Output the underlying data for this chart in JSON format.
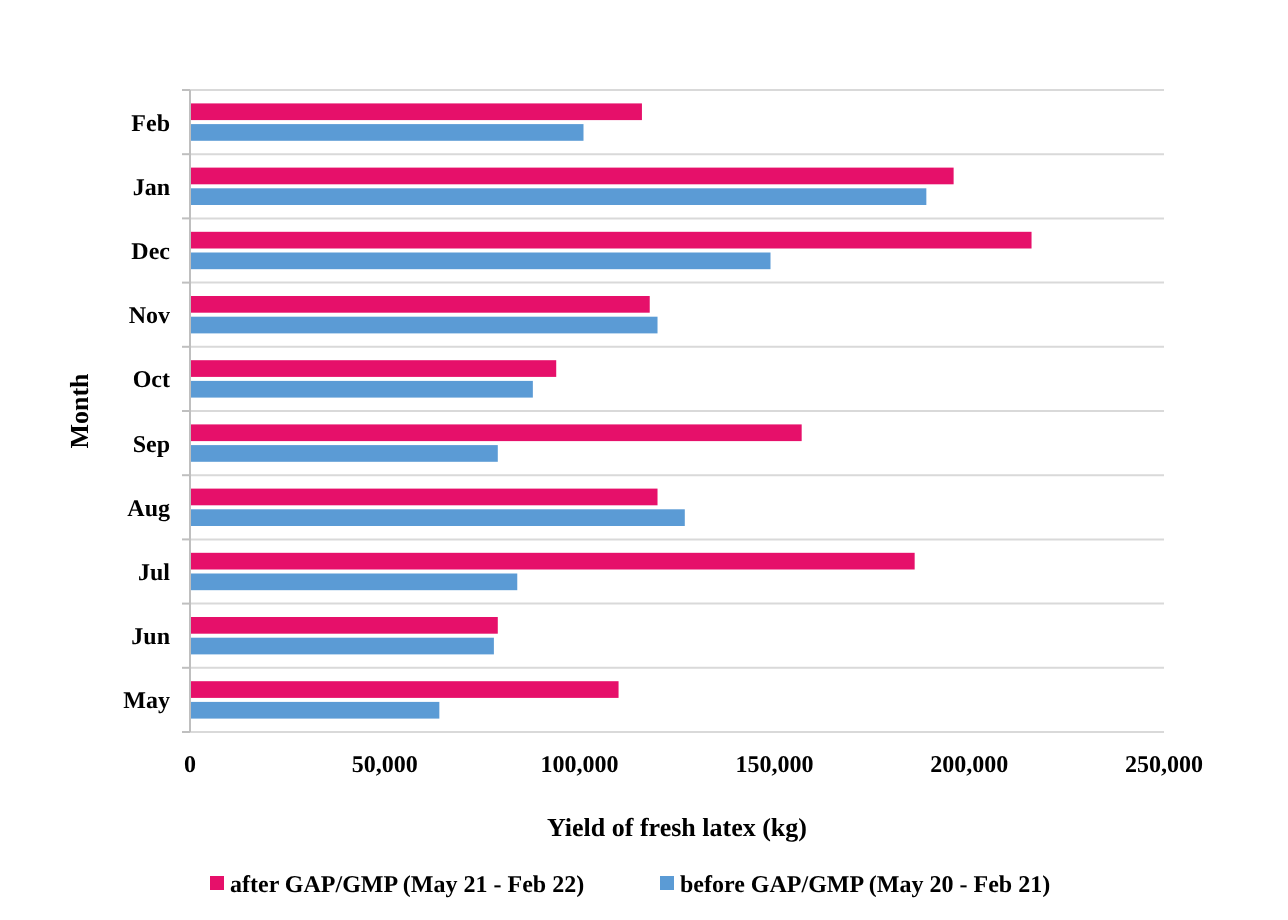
{
  "chart_data": {
    "type": "bar",
    "orientation": "horizontal",
    "xlabel": "Yield of fresh latex (kg)",
    "ylabel": "Month",
    "categories": [
      "Feb",
      "Jan",
      "Dec",
      "Nov",
      "Oct",
      "Sep",
      "Aug",
      "Jul",
      "Jun",
      "May"
    ],
    "series": [
      {
        "name": "after GAP/GMP (May 21 - Feb 22)",
        "color": "#e6106a",
        "values": [
          116000,
          196000,
          216000,
          118000,
          94000,
          157000,
          120000,
          186000,
          79000,
          110000
        ]
      },
      {
        "name": "before GAP/GMP (May 20 - Feb 21)",
        "color": "#5b9bd5",
        "values": [
          101000,
          189000,
          149000,
          120000,
          88000,
          79000,
          127000,
          84000,
          78000,
          64000
        ]
      }
    ],
    "xlim": [
      0,
      250000
    ],
    "xticks": [
      {
        "value": 0,
        "label": "0"
      },
      {
        "value": 50000,
        "label": "50,000"
      },
      {
        "value": 100000,
        "label": "100,000"
      },
      {
        "value": 150000,
        "label": "150,000"
      },
      {
        "value": 200000,
        "label": "200,000"
      },
      {
        "value": 250000,
        "label": "250,000"
      }
    ],
    "grid": "y",
    "legend": "bottom"
  }
}
